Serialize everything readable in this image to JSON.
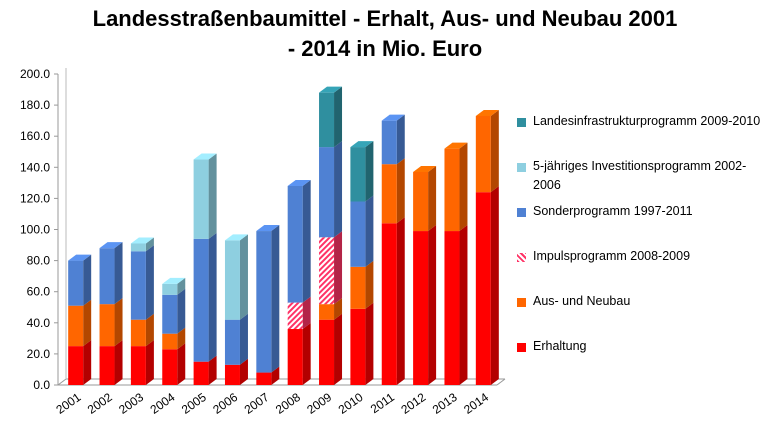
{
  "title_line1": "Landesstraßenbaumittel - Erhalt, Aus- und Neubau 2001",
  "title_line2": "- 2014 in Mio. Euro",
  "colors": {
    "erhaltung": "#ff0000",
    "ausneubau": "#ff6600",
    "impuls": "#ff3366",
    "sonder": "#4f81d3",
    "investition": "#8ecfe0",
    "landesinfra": "#2f8f9f"
  },
  "chart_data": {
    "type": "bar",
    "stacked": true,
    "categories": [
      "2001",
      "2002",
      "2003",
      "2004",
      "2005",
      "2006",
      "2007",
      "2008",
      "2009",
      "2010",
      "2011",
      "2012",
      "2013",
      "2014"
    ],
    "ylim": [
      0,
      200
    ],
    "yticks": [
      "0.0",
      "20.0",
      "40.0",
      "60.0",
      "80.0",
      "100.0",
      "120.0",
      "140.0",
      "160.0",
      "180.0",
      "200.0"
    ],
    "series": [
      {
        "name": "Erhaltung",
        "key": "erhaltung",
        "values": [
          25,
          25,
          25,
          23,
          15,
          13,
          8,
          36,
          42,
          49,
          104,
          99,
          99,
          124
        ]
      },
      {
        "name": "Aus- und Neubau",
        "key": "ausneubau",
        "values": [
          26,
          27,
          17,
          10,
          0,
          0,
          0,
          0,
          10,
          27,
          38,
          38,
          53,
          49
        ]
      },
      {
        "name": "Impulsprogramm 2008-2009",
        "key": "impuls",
        "values": [
          0,
          0,
          0,
          0,
          0,
          0,
          0,
          17,
          43,
          0,
          0,
          0,
          0,
          0
        ]
      },
      {
        "name": "Sonderprogramm 1997-2011",
        "key": "sonder",
        "values": [
          29,
          36,
          44,
          25,
          79,
          29,
          91,
          75,
          58,
          42,
          28,
          0,
          0,
          0
        ]
      },
      {
        "name": "5-jähriges Investitionsprogramm 2002-2006",
        "key": "investition",
        "values": [
          0,
          0,
          5,
          7,
          51,
          51,
          0,
          0,
          0,
          0,
          0,
          0,
          0,
          0
        ]
      },
      {
        "name": "Landesinfrastrukturprogramm 2009-2010",
        "key": "landesinfra",
        "values": [
          0,
          0,
          0,
          0,
          0,
          0,
          0,
          0,
          35,
          35,
          0,
          0,
          0,
          0
        ]
      }
    ],
    "legend": {
      "placement": "right",
      "order": [
        "landesinfra",
        "investition",
        "sonder",
        "impuls",
        "ausneubau",
        "erhaltung"
      ],
      "labels": [
        "Landesinfrastrukturprogramm 2009-2010",
        "5-jähriges Investitionsprogramm 2002-2006",
        "Sonderprogramm 1997-2011",
        "Impulsprogramm 2008-2009",
        "Aus- und Neubau",
        "Erhaltung"
      ]
    },
    "grid": false
  }
}
